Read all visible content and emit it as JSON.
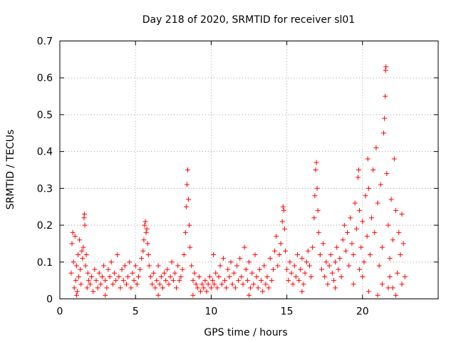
{
  "chart_data": {
    "type": "scatter",
    "title": "Day 218 of 2020, SRMTID for receiver sl01",
    "xlabel": "GPS time / hours",
    "ylabel": "SRMTID / TECUs",
    "xlim": [
      0,
      25
    ],
    "ylim": [
      0,
      0.7
    ],
    "xticks": [
      0,
      5,
      10,
      15,
      20
    ],
    "xtick_labels": [
      "0",
      "5",
      "10",
      "15",
      "20"
    ],
    "yticks": [
      0,
      0.1,
      0.2,
      0.3,
      0.4,
      0.5,
      0.6,
      0.7
    ],
    "ytick_labels": [
      "0",
      "0.1",
      "0.2",
      "0.3",
      "0.4",
      "0.5",
      "0.6",
      "0.7"
    ],
    "grid": true,
    "marker": "plus",
    "color": "#ff0000",
    "series": [
      {
        "name": "sl01",
        "points": [
          [
            0.75,
            0.07
          ],
          [
            0.8,
            0.15
          ],
          [
            0.85,
            0.18
          ],
          [
            0.9,
            0.1
          ],
          [
            0.95,
            0.03
          ],
          [
            1.0,
            0.17
          ],
          [
            1.05,
            0.05
          ],
          [
            1.1,
            0.09
          ],
          [
            1.15,
            0.02
          ],
          [
            1.2,
            0.12
          ],
          [
            1.25,
            0.06
          ],
          [
            1.3,
            0.16
          ],
          [
            1.35,
            0.08
          ],
          [
            1.4,
            0.04
          ],
          [
            1.45,
            0.13
          ],
          [
            1.5,
            0.11
          ],
          [
            1.55,
            0.14
          ],
          [
            1.6,
            0.22
          ],
          [
            1.62,
            0.23
          ],
          [
            1.65,
            0.2
          ],
          [
            1.7,
            0.09
          ],
          [
            1.75,
            0.12
          ],
          [
            1.8,
            0.03
          ],
          [
            1.85,
            0.07
          ],
          [
            1.9,
            0.05
          ],
          [
            2.0,
            0.04
          ],
          [
            2.1,
            0.06
          ],
          [
            2.2,
            0.02
          ],
          [
            2.3,
            0.08
          ],
          [
            2.4,
            0.05
          ],
          [
            2.5,
            0.03
          ],
          [
            2.6,
            0.07
          ],
          [
            2.7,
            0.04
          ],
          [
            2.8,
            0.06
          ],
          [
            2.9,
            0.09
          ],
          [
            3.0,
            0.05
          ],
          [
            3.1,
            0.03
          ],
          [
            3.2,
            0.08
          ],
          [
            3.3,
            0.06
          ],
          [
            3.4,
            0.1
          ],
          [
            3.5,
            0.04
          ],
          [
            3.6,
            0.07
          ],
          [
            3.7,
            0.05
          ],
          [
            3.8,
            0.12
          ],
          [
            3.9,
            0.06
          ],
          [
            4.0,
            0.03
          ],
          [
            4.1,
            0.08
          ],
          [
            4.2,
            0.05
          ],
          [
            4.3,
            0.09
          ],
          [
            4.4,
            0.04
          ],
          [
            4.5,
            0.06
          ],
          [
            4.6,
            0.1
          ],
          [
            4.7,
            0.03
          ],
          [
            4.8,
            0.07
          ],
          [
            4.9,
            0.05
          ],
          [
            5.0,
            0.09
          ],
          [
            5.1,
            0.04
          ],
          [
            5.2,
            0.06
          ],
          [
            5.3,
            0.08
          ],
          [
            5.4,
            0.11
          ],
          [
            5.5,
            0.13
          ],
          [
            5.55,
            0.16
          ],
          [
            5.6,
            0.2
          ],
          [
            5.65,
            0.21
          ],
          [
            5.7,
            0.18
          ],
          [
            5.75,
            0.19
          ],
          [
            5.8,
            0.15
          ],
          [
            5.85,
            0.12
          ],
          [
            5.9,
            0.09
          ],
          [
            6.0,
            0.06
          ],
          [
            6.1,
            0.04
          ],
          [
            6.2,
            0.07
          ],
          [
            6.3,
            0.03
          ],
          [
            6.4,
            0.05
          ],
          [
            6.5,
            0.09
          ],
          [
            6.6,
            0.04
          ],
          [
            6.7,
            0.06
          ],
          [
            6.8,
            0.03
          ],
          [
            6.9,
            0.07
          ],
          [
            7.0,
            0.05
          ],
          [
            7.1,
            0.08
          ],
          [
            7.2,
            0.04
          ],
          [
            7.3,
            0.06
          ],
          [
            7.4,
            0.1
          ],
          [
            7.5,
            0.05
          ],
          [
            7.6,
            0.07
          ],
          [
            7.7,
            0.03
          ],
          [
            7.8,
            0.09
          ],
          [
            7.9,
            0.05
          ],
          [
            8.0,
            0.06
          ],
          [
            8.1,
            0.08
          ],
          [
            8.2,
            0.12
          ],
          [
            8.3,
            0.18
          ],
          [
            8.35,
            0.25
          ],
          [
            8.4,
            0.31
          ],
          [
            8.45,
            0.35
          ],
          [
            8.5,
            0.27
          ],
          [
            8.55,
            0.2
          ],
          [
            8.6,
            0.14
          ],
          [
            8.7,
            0.09
          ],
          [
            8.8,
            0.05
          ],
          [
            8.9,
            0.07
          ],
          [
            9.0,
            0.04
          ],
          [
            9.1,
            0.03
          ],
          [
            9.2,
            0.06
          ],
          [
            9.3,
            0.02
          ],
          [
            9.4,
            0.04
          ],
          [
            9.5,
            0.03
          ],
          [
            9.6,
            0.05
          ],
          [
            9.7,
            0.02
          ],
          [
            9.8,
            0.04
          ],
          [
            9.9,
            0.06
          ],
          [
            10.0,
            0.03
          ],
          [
            10.1,
            0.05
          ],
          [
            10.15,
            0.12
          ],
          [
            10.2,
            0.04
          ],
          [
            10.3,
            0.07
          ],
          [
            10.4,
            0.03
          ],
          [
            10.5,
            0.06
          ],
          [
            10.6,
            0.09
          ],
          [
            10.7,
            0.04
          ],
          [
            10.8,
            0.11
          ],
          [
            10.9,
            0.05
          ],
          [
            11.0,
            0.03
          ],
          [
            11.1,
            0.08
          ],
          [
            11.2,
            0.06
          ],
          [
            11.3,
            0.1
          ],
          [
            11.4,
            0.04
          ],
          [
            11.5,
            0.07
          ],
          [
            11.6,
            0.03
          ],
          [
            11.7,
            0.09
          ],
          [
            11.8,
            0.05
          ],
          [
            11.9,
            0.11
          ],
          [
            12.0,
            0.06
          ],
          [
            12.1,
            0.04
          ],
          [
            12.2,
            0.14
          ],
          [
            12.3,
            0.08
          ],
          [
            12.4,
            0.05
          ],
          [
            12.5,
            0.1
          ],
          [
            12.6,
            0.03
          ],
          [
            12.7,
            0.07
          ],
          [
            12.8,
            0.04
          ],
          [
            12.9,
            0.12
          ],
          [
            13.0,
            0.06
          ],
          [
            13.1,
            0.03
          ],
          [
            13.2,
            0.08
          ],
          [
            13.3,
            0.05
          ],
          [
            13.4,
            0.02
          ],
          [
            13.5,
            0.09
          ],
          [
            13.6,
            0.04
          ],
          [
            13.7,
            0.06
          ],
          [
            13.8,
            0.03
          ],
          [
            13.9,
            0.11
          ],
          [
            14.0,
            0.05
          ],
          [
            14.1,
            0.08
          ],
          [
            14.2,
            0.13
          ],
          [
            14.3,
            0.17
          ],
          [
            14.4,
            0.09
          ],
          [
            14.5,
            0.12
          ],
          [
            14.6,
            0.15
          ],
          [
            14.7,
            0.21
          ],
          [
            14.75,
            0.25
          ],
          [
            14.8,
            0.24
          ],
          [
            14.85,
            0.19
          ],
          [
            14.9,
            0.13
          ],
          [
            15.0,
            0.08
          ],
          [
            15.1,
            0.05
          ],
          [
            15.2,
            0.1
          ],
          [
            15.3,
            0.07
          ],
          [
            15.4,
            0.04
          ],
          [
            15.5,
            0.09
          ],
          [
            15.6,
            0.06
          ],
          [
            15.7,
            0.12
          ],
          [
            15.8,
            0.05
          ],
          [
            15.9,
            0.08
          ],
          [
            16.0,
            0.11
          ],
          [
            16.1,
            0.04
          ],
          [
            16.2,
            0.07
          ],
          [
            16.3,
            0.1
          ],
          [
            16.4,
            0.13
          ],
          [
            16.5,
            0.09
          ],
          [
            16.6,
            0.06
          ],
          [
            16.7,
            0.14
          ],
          [
            16.8,
            0.22
          ],
          [
            16.85,
            0.28
          ],
          [
            16.9,
            0.35
          ],
          [
            16.95,
            0.37
          ],
          [
            17.0,
            0.3
          ],
          [
            17.05,
            0.24
          ],
          [
            17.1,
            0.18
          ],
          [
            17.2,
            0.12
          ],
          [
            17.3,
            0.08
          ],
          [
            17.4,
            0.15
          ],
          [
            17.5,
            0.06
          ],
          [
            17.6,
            0.1
          ],
          [
            17.7,
            0.04
          ],
          [
            17.8,
            0.09
          ],
          [
            17.9,
            0.12
          ],
          [
            18.0,
            0.07
          ],
          [
            18.1,
            0.05
          ],
          [
            18.2,
            0.1
          ],
          [
            18.3,
            0.14
          ],
          [
            18.4,
            0.08
          ],
          [
            18.5,
            0.11
          ],
          [
            18.6,
            0.06
          ],
          [
            18.7,
            0.16
          ],
          [
            18.8,
            0.2
          ],
          [
            18.9,
            0.13
          ],
          [
            19.0,
            0.18
          ],
          [
            19.1,
            0.09
          ],
          [
            19.2,
            0.22
          ],
          [
            19.3,
            0.15
          ],
          [
            19.4,
            0.12
          ],
          [
            19.5,
            0.26
          ],
          [
            19.6,
            0.19
          ],
          [
            19.7,
            0.33
          ],
          [
            19.75,
            0.35
          ],
          [
            19.8,
            0.24
          ],
          [
            19.9,
            0.14
          ],
          [
            20.0,
            0.21
          ],
          [
            20.1,
            0.1
          ],
          [
            20.2,
            0.28
          ],
          [
            20.3,
            0.17
          ],
          [
            20.35,
            0.38
          ],
          [
            20.4,
            0.3
          ],
          [
            20.5,
            0.12
          ],
          [
            20.6,
            0.22
          ],
          [
            20.7,
            0.35
          ],
          [
            20.8,
            0.18
          ],
          [
            20.9,
            0.41
          ],
          [
            21.0,
            0.26
          ],
          [
            21.1,
            0.09
          ],
          [
            21.2,
            0.31
          ],
          [
            21.3,
            0.14
          ],
          [
            21.4,
            0.45
          ],
          [
            21.45,
            0.49
          ],
          [
            21.5,
            0.55
          ],
          [
            21.52,
            0.62
          ],
          [
            21.55,
            0.63
          ],
          [
            21.6,
            0.34
          ],
          [
            21.7,
            0.2
          ],
          [
            21.8,
            0.11
          ],
          [
            21.9,
            0.27
          ],
          [
            22.0,
            0.16
          ],
          [
            22.1,
            0.38
          ],
          [
            22.2,
            0.24
          ],
          [
            22.3,
            0.07
          ],
          [
            22.4,
            0.18
          ],
          [
            22.5,
            0.12
          ],
          [
            22.6,
            0.23
          ],
          [
            22.7,
            0.15
          ],
          [
            22.8,
            0.06
          ],
          [
            20.4,
            0.02
          ],
          [
            21.0,
            0.01
          ],
          [
            21.7,
            0.03
          ],
          [
            22.2,
            0.01
          ],
          [
            19.4,
            0.04
          ],
          [
            18.2,
            0.03
          ],
          [
            16.0,
            0.02
          ],
          [
            12.5,
            0.01
          ],
          [
            8.8,
            0.01
          ],
          [
            6.5,
            0.01
          ],
          [
            3.0,
            0.01
          ],
          [
            1.1,
            0.01
          ],
          [
            22.6,
            0.04
          ],
          [
            20.0,
            0.06
          ],
          [
            21.3,
            0.04
          ],
          [
            19.8,
            0.08
          ],
          [
            22.0,
            0.03
          ],
          [
            21.8,
            0.06
          ]
        ]
      }
    ]
  }
}
